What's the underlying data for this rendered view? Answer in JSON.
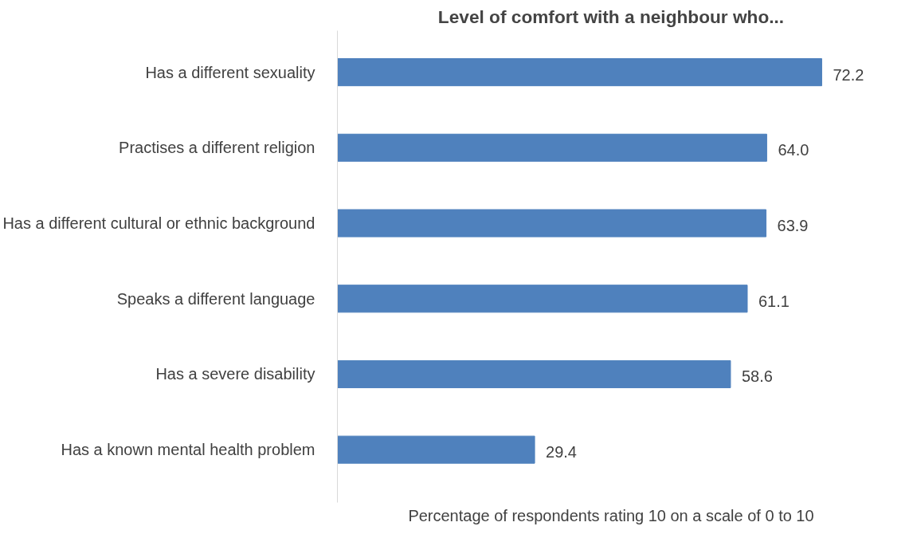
{
  "chart_data": {
    "type": "bar",
    "orientation": "horizontal",
    "title": "Level of comfort with a neighbour who...",
    "xlabel": "Percentage of respondents rating 10 on a scale of 0 to 10",
    "categories": [
      "Has a different sexuality",
      "Practises a different religion",
      "Has a different cultural or ethnic background",
      "Speaks a different language",
      "Has a severe disability",
      "Has a known mental health problem"
    ],
    "values": [
      72.2,
      64.0,
      63.9,
      61.1,
      58.6,
      29.4
    ],
    "value_labels": [
      "72.2",
      "64.0",
      "63.9",
      "61.1",
      "58.6",
      "29.4"
    ],
    "color": "#4f81bd"
  }
}
